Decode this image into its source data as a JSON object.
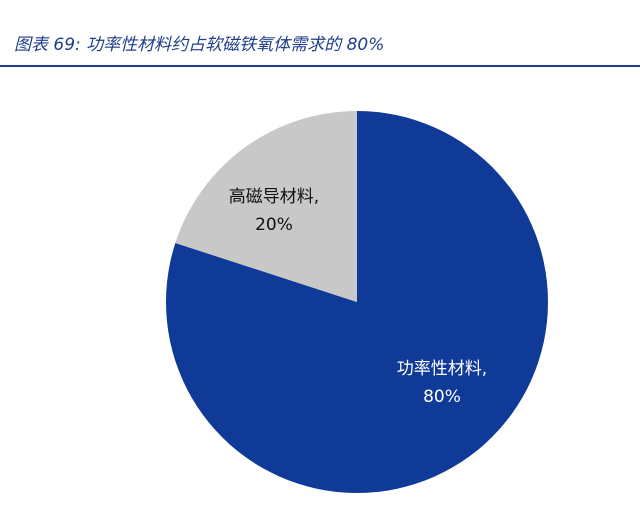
{
  "header": {
    "title": "图表 69:  功率性材料约占软磁铁氧体需求的 80%"
  },
  "colors": {
    "accent": "#1f3f8a",
    "slice_primary": "#0f3a97",
    "slice_secondary": "#c8c8c8"
  },
  "chart_data": {
    "type": "pie",
    "title": "",
    "slices": [
      {
        "label": "功率性材料,",
        "value_text": "80%",
        "value": 80,
        "color": "#0f3a97",
        "text_color": "#ffffff"
      },
      {
        "label": "高磁导材料,",
        "value_text": "20%",
        "value": 20,
        "color": "#c8c8c8",
        "text_color": "#111111"
      }
    ]
  }
}
